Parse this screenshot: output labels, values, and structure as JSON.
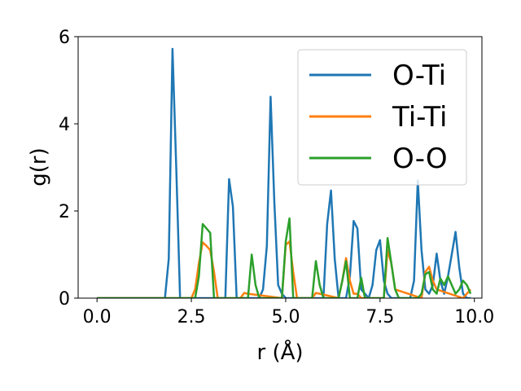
{
  "chart_data": {
    "type": "line",
    "xlabel": "r (Å)",
    "ylabel": "g(r)",
    "xlim": [
      -0.5,
      10.2
    ],
    "ylim": [
      0,
      6
    ],
    "xticks": [
      0.0,
      2.5,
      5.0,
      7.5,
      10.0
    ],
    "xtick_labels": [
      "0.0",
      "2.5",
      "5.0",
      "7.5",
      "10.0"
    ],
    "yticks": [
      0,
      2,
      4,
      6
    ],
    "ytick_labels": [
      "0",
      "2",
      "4",
      "6"
    ],
    "grid": false,
    "legend_position": "top-right",
    "series": [
      {
        "name": "O-Ti",
        "color": "#1f77b4",
        "x": [
          0.0,
          1.8,
          1.9,
          2.0,
          2.1,
          2.2,
          3.4,
          3.5,
          3.6,
          3.7,
          4.3,
          4.4,
          4.5,
          4.6,
          4.7,
          4.8,
          4.9,
          5.0,
          6.0,
          6.1,
          6.2,
          6.3,
          6.4,
          6.6,
          6.7,
          6.8,
          6.9,
          7.0,
          7.2,
          7.3,
          7.4,
          7.5,
          7.6,
          7.7,
          7.8,
          8.3,
          8.4,
          8.5,
          8.6,
          8.7,
          8.8,
          8.9,
          9.0,
          9.1,
          9.2,
          9.3,
          9.4,
          9.5,
          9.6,
          9.7,
          9.8,
          9.9
        ],
        "y": [
          0.0,
          0.0,
          0.9,
          5.72,
          3.0,
          0.0,
          0.0,
          2.73,
          2.1,
          0.0,
          0.0,
          0.2,
          1.2,
          4.62,
          2.2,
          0.3,
          0.1,
          0.0,
          0.0,
          1.7,
          2.47,
          0.9,
          0.0,
          0.0,
          0.5,
          1.77,
          1.6,
          0.2,
          0.0,
          0.3,
          1.1,
          1.33,
          0.4,
          0.1,
          0.0,
          0.0,
          0.4,
          2.7,
          1.1,
          0.2,
          0.1,
          0.3,
          1.02,
          0.4,
          0.1,
          0.5,
          1.0,
          1.52,
          0.7,
          0.1,
          0.0,
          0.0
        ]
      },
      {
        "name": "Ti-Ti",
        "color": "#ff7f0e",
        "x": [
          0.0,
          2.5,
          2.6,
          2.7,
          2.8,
          2.9,
          3.0,
          3.1,
          3.2,
          3.8,
          3.9,
          4.0,
          4.9,
          5.0,
          5.1,
          5.2,
          5.3,
          5.7,
          5.8,
          5.9,
          6.4,
          6.5,
          6.6,
          6.7,
          6.8,
          6.9,
          7.0,
          7.6,
          7.7,
          7.8,
          7.9,
          8.6,
          8.7,
          8.8,
          8.9,
          9.0,
          9.7,
          9.8,
          9.9
        ],
        "y": [
          0.0,
          0.0,
          0.2,
          0.8,
          1.28,
          1.2,
          1.1,
          0.6,
          0.0,
          0.0,
          0.12,
          0.1,
          0.0,
          1.22,
          1.3,
          0.6,
          0.0,
          0.0,
          0.12,
          0.1,
          0.0,
          0.4,
          0.92,
          0.4,
          0.1,
          0.1,
          0.0,
          0.0,
          1.1,
          0.8,
          0.2,
          0.0,
          0.6,
          0.72,
          0.4,
          0.2,
          0.0,
          0.1,
          0.2
        ]
      },
      {
        "name": "O-O",
        "color": "#2ca02c",
        "x": [
          0.0,
          2.6,
          2.7,
          2.8,
          2.9,
          3.0,
          3.1,
          4.0,
          4.1,
          4.2,
          4.3,
          4.9,
          5.0,
          5.1,
          5.2,
          5.7,
          5.8,
          5.9,
          6.0,
          6.4,
          6.5,
          6.6,
          6.7,
          6.9,
          7.0,
          7.1,
          7.6,
          7.7,
          7.8,
          7.9,
          8.0,
          8.5,
          8.6,
          8.7,
          8.8,
          8.9,
          9.0,
          9.1,
          9.2,
          9.3,
          9.5,
          9.6,
          9.7,
          9.8,
          9.9
        ],
        "y": [
          0.0,
          0.0,
          0.5,
          1.7,
          1.6,
          1.5,
          0.0,
          0.0,
          1.0,
          0.3,
          0.0,
          0.0,
          1.3,
          1.83,
          0.0,
          0.0,
          0.85,
          0.3,
          0.0,
          0.0,
          0.4,
          0.85,
          0.0,
          0.0,
          0.47,
          0.0,
          0.0,
          1.38,
          0.8,
          0.2,
          0.0,
          0.0,
          0.1,
          0.55,
          0.6,
          0.2,
          0.1,
          0.45,
          0.3,
          0.5,
          0.1,
          0.2,
          0.4,
          0.3,
          0.1
        ]
      }
    ]
  }
}
